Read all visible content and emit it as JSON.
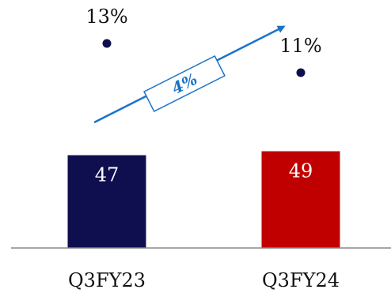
{
  "chart_data": {
    "type": "bar",
    "categories": [
      "Q3FY23",
      "Q3FY24"
    ],
    "series": [
      {
        "values": [
          47,
          49
        ],
        "colors": [
          "#0f0f4f",
          "#c00000"
        ]
      }
    ],
    "percentages": [
      "13%",
      "11%"
    ],
    "growth_annotation": "4%",
    "ylim": [
      0,
      100
    ],
    "grid": false,
    "legend": "none",
    "marker_color": "#0f0f4f",
    "arrow_color": "#1a73c8",
    "baseline_color": "#888888"
  }
}
